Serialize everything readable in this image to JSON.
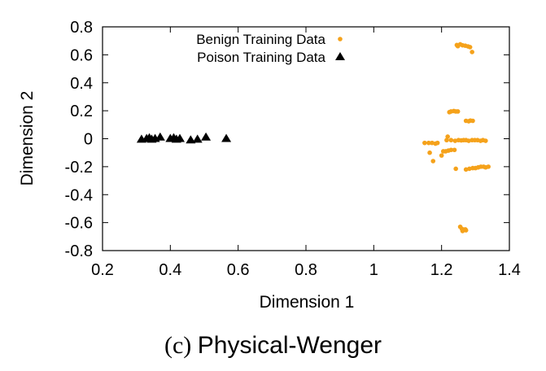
{
  "chart_data": {
    "type": "scatter",
    "xlabel": "Dimension 1",
    "ylabel": "Dimension 2",
    "xlim": [
      0.2,
      1.4
    ],
    "ylim": [
      -0.8,
      0.8
    ],
    "xticks": [
      "0.2",
      "0.4",
      "0.6",
      "0.8",
      "1",
      "1.2",
      "1.4"
    ],
    "yticks": [
      "0.8",
      "0.6",
      "0.4",
      "0.2",
      "0",
      "-0.2",
      "-0.4",
      "-0.6",
      "-0.8"
    ],
    "grid": false,
    "legend_position": "top-center",
    "series": [
      {
        "name": "Benign Training Data",
        "marker": "circle",
        "color": "#f5a21b",
        "points": [
          [
            1.245,
            0.67
          ],
          [
            1.255,
            0.675
          ],
          [
            1.262,
            0.668
          ],
          [
            1.27,
            0.665
          ],
          [
            1.278,
            0.66
          ],
          [
            1.284,
            0.655
          ],
          [
            1.248,
            0.662
          ],
          [
            1.29,
            0.62
          ],
          [
            1.228,
            0.195
          ],
          [
            1.236,
            0.198
          ],
          [
            1.242,
            0.195
          ],
          [
            1.248,
            0.195
          ],
          [
            1.223,
            0.19
          ],
          [
            1.218,
            0.015
          ],
          [
            1.285,
            0.13
          ],
          [
            1.272,
            0.128
          ],
          [
            1.28,
            0.125
          ],
          [
            1.292,
            0.128
          ],
          [
            1.15,
            -0.03
          ],
          [
            1.162,
            -0.03
          ],
          [
            1.172,
            -0.03
          ],
          [
            1.182,
            -0.035
          ],
          [
            1.188,
            -0.03
          ],
          [
            1.215,
            -0.01
          ],
          [
            1.228,
            -0.01
          ],
          [
            1.24,
            -0.015
          ],
          [
            1.25,
            -0.01
          ],
          [
            1.258,
            -0.012
          ],
          [
            1.265,
            -0.01
          ],
          [
            1.272,
            -0.01
          ],
          [
            1.28,
            -0.015
          ],
          [
            1.29,
            -0.01
          ],
          [
            1.298,
            -0.01
          ],
          [
            1.306,
            -0.01
          ],
          [
            1.315,
            -0.015
          ],
          [
            1.322,
            -0.01
          ],
          [
            1.33,
            -0.015
          ],
          [
            1.165,
            -0.1
          ],
          [
            1.175,
            -0.16
          ],
          [
            1.2,
            -0.12
          ],
          [
            1.205,
            -0.09
          ],
          [
            1.212,
            -0.09
          ],
          [
            1.22,
            -0.085
          ],
          [
            1.228,
            -0.08
          ],
          [
            1.238,
            -0.08
          ],
          [
            1.242,
            -0.215
          ],
          [
            1.272,
            -0.22
          ],
          [
            1.282,
            -0.215
          ],
          [
            1.292,
            -0.21
          ],
          [
            1.3,
            -0.21
          ],
          [
            1.308,
            -0.205
          ],
          [
            1.316,
            -0.2
          ],
          [
            1.324,
            -0.2
          ],
          [
            1.33,
            -0.205
          ],
          [
            1.338,
            -0.2
          ],
          [
            1.255,
            -0.63
          ],
          [
            1.26,
            -0.645
          ],
          [
            1.266,
            -0.65
          ],
          [
            1.272,
            -0.655
          ],
          [
            1.262,
            -0.66
          ],
          [
            1.27,
            -0.648
          ]
        ]
      },
      {
        "name": "Poison Training Data",
        "marker": "triangle",
        "color": "#000000",
        "points": [
          [
            0.315,
            -0.005
          ],
          [
            0.33,
            0.0
          ],
          [
            0.338,
            0.005
          ],
          [
            0.345,
            -0.005
          ],
          [
            0.355,
            0.0
          ],
          [
            0.37,
            0.01
          ],
          [
            0.4,
            0.0
          ],
          [
            0.41,
            0.005
          ],
          [
            0.418,
            -0.005
          ],
          [
            0.428,
            0.0
          ],
          [
            0.46,
            -0.01
          ],
          [
            0.48,
            -0.005
          ],
          [
            0.505,
            0.01
          ],
          [
            0.565,
            0.0
          ]
        ]
      }
    ]
  },
  "caption": {
    "prefix": "(c)",
    "title": "Physical-Wenger"
  }
}
